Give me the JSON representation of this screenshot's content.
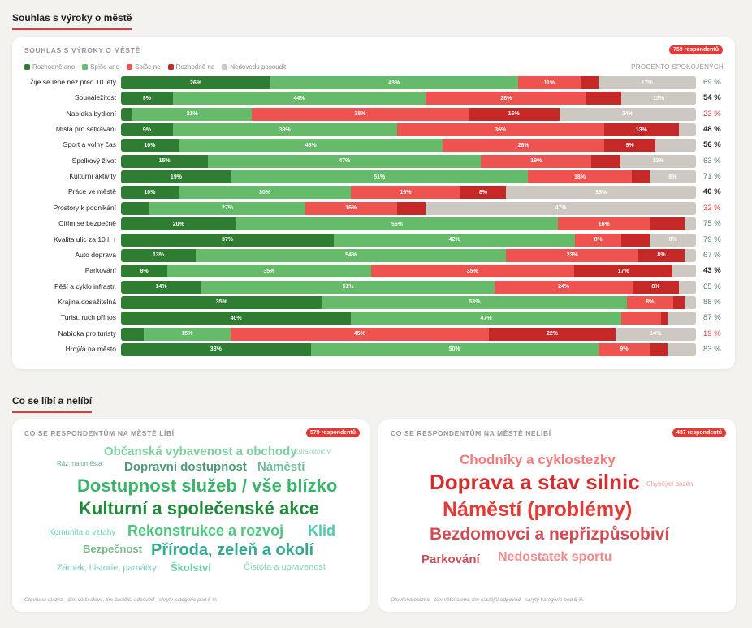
{
  "section1": {
    "title": "Souhlas s výroky o městě"
  },
  "card1": {
    "title": "SOUHLAS S VÝROKY O MĚSTĚ",
    "badge": "759 respondentů",
    "pct_header": "PROCENTO SPOKOJENÝCH",
    "legend": [
      {
        "label": "Rozhodně ano",
        "color": "#2e7d32"
      },
      {
        "label": "Spíše ano",
        "color": "#66bb6a"
      },
      {
        "label": "Spíše ne",
        "color": "#ef5350"
      },
      {
        "label": "Rozhodně ne",
        "color": "#c62828"
      },
      {
        "label": "Nedovedu posoudit",
        "color": "#cdc8c1"
      }
    ]
  },
  "chart_data": {
    "type": "bar",
    "stacked": true,
    "orientation": "horizontal",
    "title": "SOUHLAS S VÝROKY O MĚSTĚ",
    "series_names": [
      "Rozhodně ano",
      "Spíše ano",
      "Spíše ne",
      "Rozhodně ne",
      "Nedovedu posoudit"
    ],
    "rows": [
      {
        "label": "Žije se lépe než před 10 lety",
        "values": [
          26,
          43,
          11,
          3,
          17
        ],
        "pct": "69 %"
      },
      {
        "label": "Sounáležitost",
        "values": [
          9,
          44,
          28,
          6,
          13
        ],
        "pct": "54 %"
      },
      {
        "label": "Nabídka bydlení",
        "values": [
          2,
          21,
          38,
          16,
          24
        ],
        "pct": "23 %"
      },
      {
        "label": "Místa pro setkávání",
        "values": [
          9,
          39,
          36,
          13,
          3
        ],
        "pct": "48 %"
      },
      {
        "label": "Sport a volný čas",
        "values": [
          10,
          46,
          28,
          9,
          7
        ],
        "pct": "56 %"
      },
      {
        "label": "Spolkový život",
        "values": [
          15,
          47,
          19,
          5,
          13
        ],
        "pct": "63 %"
      },
      {
        "label": "Kulturní aktivity",
        "values": [
          19,
          51,
          18,
          3,
          8
        ],
        "pct": "71 %"
      },
      {
        "label": "Práce ve městě",
        "values": [
          10,
          30,
          19,
          8,
          33
        ],
        "pct": "40 %"
      },
      {
        "label": "Prostory k podnikání",
        "values": [
          5,
          27,
          16,
          5,
          47
        ],
        "pct": "32 %"
      },
      {
        "label": "Cítím se bezpečně",
        "values": [
          20,
          56,
          16,
          6,
          2
        ],
        "pct": "75 %"
      },
      {
        "label": "Kvalita ulic za 10 l. ↑",
        "values": [
          37,
          42,
          8,
          5,
          8
        ],
        "pct": "79 %"
      },
      {
        "label": "Auto doprava",
        "values": [
          13,
          54,
          23,
          8,
          2
        ],
        "pct": "67 %"
      },
      {
        "label": "Parkování",
        "values": [
          8,
          35,
          35,
          17,
          4
        ],
        "pct": "43 %"
      },
      {
        "label": "Pěší a cyklo infrastr.",
        "values": [
          14,
          51,
          24,
          8,
          3
        ],
        "pct": "65 %"
      },
      {
        "label": "Krajina dosažitelná",
        "values": [
          35,
          53,
          8,
          2,
          2
        ],
        "pct": "88 %"
      },
      {
        "label": "Turist. ruch přínos",
        "values": [
          40,
          47,
          7,
          1,
          5
        ],
        "pct": "87 %"
      },
      {
        "label": "Nabídka pro turisty",
        "values": [
          4,
          15,
          45,
          22,
          14
        ],
        "pct": "19 %"
      },
      {
        "label": "Hrdý/á na město",
        "values": [
          33,
          50,
          9,
          3,
          5
        ],
        "pct": "83 %"
      }
    ],
    "xlim": [
      0,
      100
    ]
  },
  "section2": {
    "title": "Co se líbí a nelíbí"
  },
  "likes": {
    "title": "CO SE RESPONDENTŮM NA MĚSTĚ LÍBÍ",
    "badge": "579 respondentů",
    "words": [
      {
        "text": "Občanská vybavenost a obchody",
        "color": "#7fcfa0"
      },
      {
        "text": "Zdravotnictví",
        "color": "#8fd8b8"
      },
      {
        "text": "Ráz maloměsta",
        "color": "#6aab8a"
      },
      {
        "text": "Dopravní dostupnost",
        "color": "#4e9a76"
      },
      {
        "text": "Náměstí",
        "color": "#6fbf99"
      },
      {
        "text": "Dostupnost služeb / vše blízko",
        "color": "#3bb36a"
      },
      {
        "text": "Kulturní a společenské akce",
        "color": "#1f8a3a"
      },
      {
        "text": "Komunita a vztahy",
        "color": "#6ccfb5"
      },
      {
        "text": "Rekonstrukce a rozvoj",
        "color": "#4cc87e"
      },
      {
        "text": "Klid",
        "color": "#4fc9b0"
      },
      {
        "text": "Bezpečnost",
        "color": "#79b889"
      },
      {
        "text": "Příroda, zeleň a okolí",
        "color": "#35a890"
      },
      {
        "text": "Zámek, historie, památky",
        "color": "#7cc8b8"
      },
      {
        "text": "Školství",
        "color": "#74d0a8"
      },
      {
        "text": "Čistota a upravenost",
        "color": "#85d8b0"
      }
    ],
    "footnote": "Otevřená otázka · čím větší slovo, tím častější odpověď · skryty kategorie pod 5 %"
  },
  "dislikes": {
    "title": "CO SE RESPONDENTŮM NA MĚSTĚ NELÍBÍ",
    "badge": "437 respondentů",
    "words": [
      {
        "text": "Chodníky a cyklostezky",
        "color": "#f27b7b"
      },
      {
        "text": "Doprava a stav silnic",
        "color": "#d32f2f"
      },
      {
        "text": "Chybějící bazén",
        "color": "#e89a9a"
      },
      {
        "text": "Náměstí (problémy)",
        "color": "#e53935"
      },
      {
        "text": "Bezdomovci a nepřizpůsobiví",
        "color": "#d24b52"
      },
      {
        "text": "Parkování",
        "color": "#c9505a"
      },
      {
        "text": "Nedostatek sportu",
        "color": "#f48a8a"
      }
    ],
    "footnote": "Otevřená otázka · čím větší slovo, tím častější odpověď · skryty kategorie pod 5 %"
  }
}
